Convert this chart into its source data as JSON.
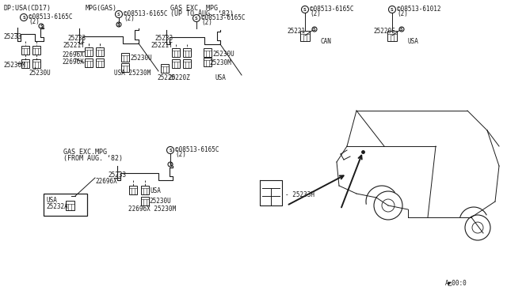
{
  "bg_color": "#ffffff",
  "line_color": "#1a1a1a",
  "fs_main": 6.0,
  "fs_small": 5.5,
  "sections": {
    "s1_label": "DP:USA(CD17)",
    "s2_label": "MPG(GAS)",
    "s3_label1": "GAS EXC. MPG",
    "s3_label2": "(UP TO AUG. ‘82)",
    "s4_label1": "GAS EXC.MPG",
    "s4_label2": "‹FROM AUG. ‘82›",
    "s5_label1": "©08513-6165C",
    "s5_label2": "(2)",
    "s6_label1": "©08513-61012",
    "s6_label2": "(2)"
  },
  "parts": {
    "25233": "25233",
    "25230M": "25230M",
    "25230U": "25230U",
    "25221T": "25221T",
    "22696X": "22696X",
    "25220": "25220",
    "25220Z": "25220Z",
    "25221": "25221",
    "25220E": "25220E",
    "25232A": "25232A",
    "25233H": "25233H",
    "screw1": "©08513-6165C",
    "screw2": "(2)"
  },
  "diagram_num": "A◩00:0"
}
